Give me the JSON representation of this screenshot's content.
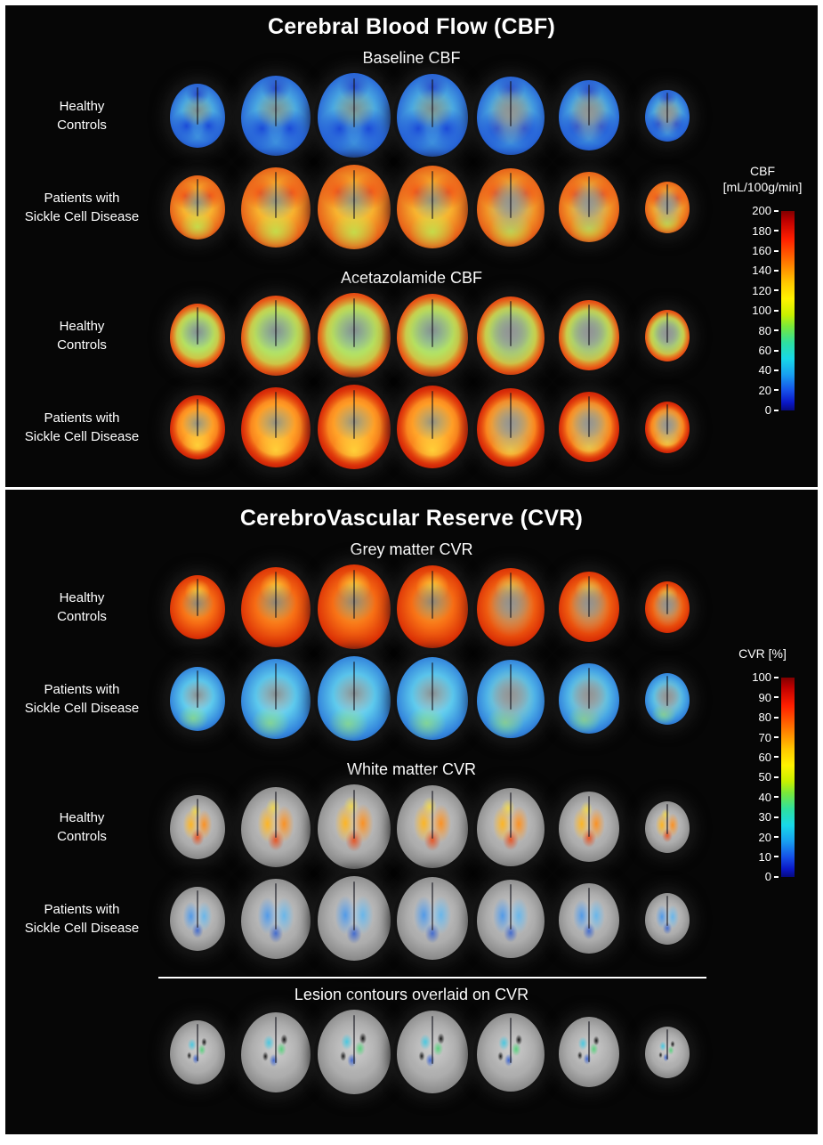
{
  "slices_per_row": 7,
  "sections": [
    {
      "id": "cbf",
      "title": "Cerebral Blood Flow (CBF)",
      "subsections": [
        {
          "title": "Baseline  CBF",
          "rows": [
            {
              "label_lines": [
                "Healthy",
                "Controls"
              ],
              "scheme": "cbf-baseline-hc"
            },
            {
              "label_lines": [
                "Patients with",
                "Sickle Cell Disease"
              ],
              "scheme": "cbf-baseline-scd"
            }
          ]
        },
        {
          "title": "Acetazolamide  CBF",
          "rows": [
            {
              "label_lines": [
                "Healthy",
                "Controls"
              ],
              "scheme": "cbf-acz-hc"
            },
            {
              "label_lines": [
                "Patients with",
                "Sickle Cell Disease"
              ],
              "scheme": "cbf-acz-scd"
            }
          ]
        }
      ],
      "colorbar": {
        "title_lines": [
          "CBF",
          "[mL/100g/min]"
        ],
        "ticks": [
          "200",
          "180",
          "160",
          "140",
          "120",
          "100",
          "80",
          "60",
          "40",
          "20",
          "0"
        ]
      }
    },
    {
      "id": "cvr",
      "title": "CerebroVascular Reserve (CVR)",
      "subsections": [
        {
          "title": "Grey matter CVR",
          "rows": [
            {
              "label_lines": [
                "Healthy",
                "Controls"
              ],
              "scheme": "cvr-gm-hc"
            },
            {
              "label_lines": [
                "Patients with",
                "Sickle Cell Disease"
              ],
              "scheme": "cvr-gm-scd"
            }
          ]
        },
        {
          "title": "White matter CVR",
          "rows": [
            {
              "label_lines": [
                "Healthy",
                "Controls"
              ],
              "scheme": "cvr-wm-hc"
            },
            {
              "label_lines": [
                "Patients with",
                "Sickle Cell Disease"
              ],
              "scheme": "cvr-wm-scd"
            }
          ]
        }
      ],
      "colorbar": {
        "title_lines": [
          "CVR [%]"
        ],
        "ticks": [
          "100",
          "90",
          "80",
          "70",
          "60",
          "50",
          "40",
          "30",
          "20",
          "10",
          "0"
        ]
      }
    },
    {
      "id": "lesion",
      "title": "Lesion contours overlaid on CVR",
      "rows": [
        {
          "label_lines": [],
          "scheme": "lesion"
        }
      ]
    }
  ]
}
